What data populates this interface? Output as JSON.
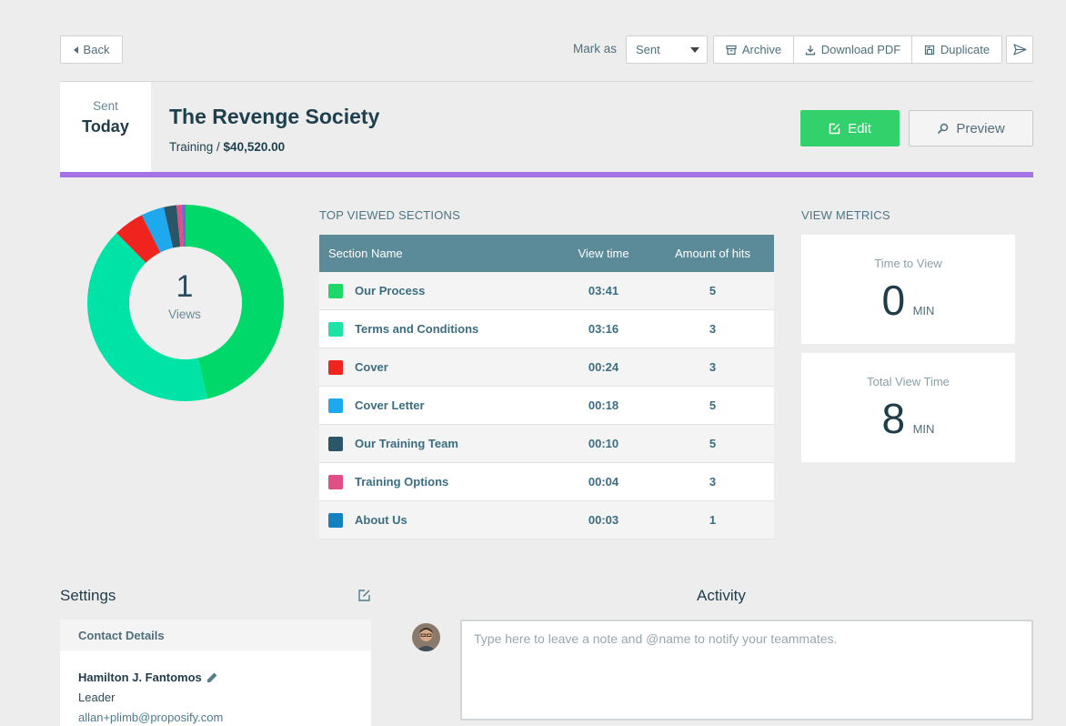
{
  "toolbar": {
    "back_label": "Back",
    "mark_as_label": "Mark as",
    "status_value": "Sent",
    "archive_label": "Archive",
    "download_label": "Download PDF",
    "duplicate_label": "Duplicate"
  },
  "header": {
    "status_label": "Sent",
    "status_date": "Today",
    "title": "The Revenge Society",
    "category": "Training /",
    "amount": "$40,520.00",
    "edit_label": "Edit",
    "preview_label": "Preview",
    "accent_color": "#a672e8"
  },
  "views": {
    "count": "1",
    "label": "Views"
  },
  "sections": {
    "heading": "TOP VIEWED SECTIONS",
    "columns": [
      "Section Name",
      "View time",
      "Amount of hits"
    ],
    "rows": [
      {
        "name": "Our Process",
        "time": "03:41",
        "hits": "5",
        "color": "#1fd86a"
      },
      {
        "name": "Terms and Conditions",
        "time": "03:16",
        "hits": "3",
        "color": "#1ee3a6"
      },
      {
        "name": "Cover",
        "time": "00:24",
        "hits": "3",
        "color": "#f0241e"
      },
      {
        "name": "Cover Letter",
        "time": "00:18",
        "hits": "5",
        "color": "#1ea8ee"
      },
      {
        "name": "Our Training Team",
        "time": "00:10",
        "hits": "5",
        "color": "#2a5668"
      },
      {
        "name": "Training Options",
        "time": "00:04",
        "hits": "3",
        "color": "#e24f86"
      },
      {
        "name": "About Us",
        "time": "00:03",
        "hits": "1",
        "color": "#1381c1"
      }
    ]
  },
  "chart_data": {
    "type": "pie",
    "series": [
      {
        "values": [
          221,
          196,
          24,
          18,
          10,
          4,
          3
        ]
      }
    ],
    "categories": [
      "Our Process",
      "Terms and Conditions",
      "Cover",
      "Cover Letter",
      "Our Training Team",
      "Training Options",
      "About Us"
    ],
    "colors": [
      "#00d86a",
      "#00e3a6",
      "#f0241e",
      "#1ea8ee",
      "#2a5668",
      "#e24f86",
      "#7a62d0"
    ]
  },
  "metrics": {
    "heading": "VIEW METRICS",
    "time_to_view_label": "Time to View",
    "time_to_view_value": "0",
    "time_to_view_unit": "MIN",
    "total_label": "Total View Time",
    "total_value": "8",
    "total_unit": "MIN"
  },
  "settings": {
    "title": "Settings",
    "contact_heading": "Contact Details",
    "contact_name": "Hamilton J. Fantomos",
    "contact_role": "Leader",
    "contact_email": "allan+plimb@proposify.com"
  },
  "activity": {
    "title": "Activity",
    "note_placeholder": "Type here to leave a note and @name to notify your teammates."
  }
}
